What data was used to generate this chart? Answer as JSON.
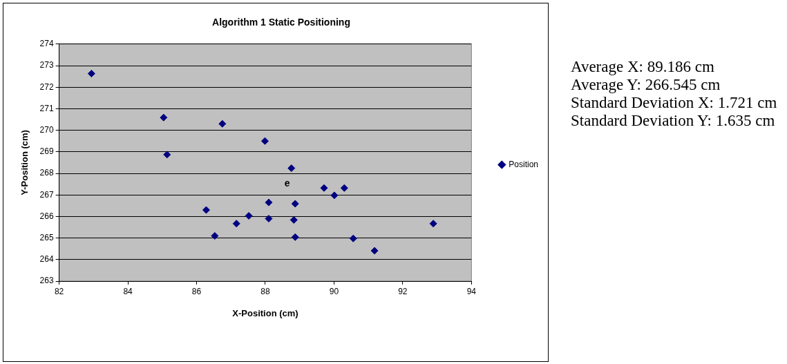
{
  "chart_data": {
    "type": "scatter",
    "title": "Algorithm 1 Static Positioning",
    "xlabel": "X-Position (cm)",
    "ylabel": "Y-Position (cm)",
    "xlim": [
      82,
      94
    ],
    "xticks": [
      82,
      84,
      86,
      88,
      90,
      92,
      94
    ],
    "ylim": [
      263,
      274
    ],
    "yticks": [
      263,
      264,
      265,
      266,
      267,
      268,
      269,
      270,
      271,
      272,
      273,
      274
    ],
    "grid": "y",
    "legend": "right",
    "marker": "diamond",
    "series": [
      {
        "name": "Position",
        "color": "#000080",
        "x": [
          82.94,
          85.04,
          85.14,
          86.75,
          86.28,
          86.53,
          87.16,
          87.52,
          87.99,
          88.76,
          88.1,
          88.1,
          88.87,
          88.83,
          88.87,
          89.71,
          90.01,
          90.3,
          90.56,
          91.18,
          92.89
        ],
        "values": [
          272.63,
          270.59,
          268.87,
          270.3,
          266.3,
          265.1,
          265.67,
          266.03,
          269.5,
          268.24,
          266.65,
          265.9,
          266.59,
          265.84,
          265.04,
          267.32,
          266.98,
          267.32,
          264.98,
          264.41,
          265.67
        ]
      }
    ],
    "annotations": [
      "e",
      "Average X: 89.186 cm",
      "Average Y: 266.545 cm",
      "Standard Deviation X: 1.721 cm",
      "Standard Deviation Y: 1.635 cm"
    ]
  }
}
